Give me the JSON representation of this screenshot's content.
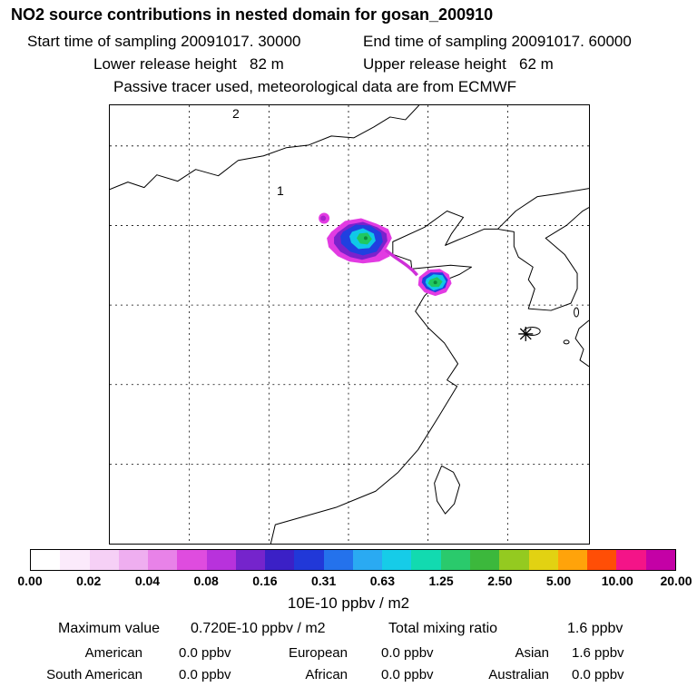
{
  "title": "NO2 source contributions in nested domain for gosan_200910",
  "header": {
    "start_time": "Start time of sampling 20091017. 30000",
    "end_time": "End time of sampling 20091017. 60000",
    "lower_release": "Lower release height   82 m",
    "upper_release": "Upper release height   62 m",
    "tracer_info": "Passive tracer used, meteorological data are from ECMWF"
  },
  "map": {
    "point_labels": [
      {
        "text": "2"
      },
      {
        "text": "1"
      }
    ],
    "receptor_marker": "asterisk"
  },
  "colorbar": {
    "ticks": [
      "0.00",
      "0.02",
      "0.04",
      "0.08",
      "0.16",
      "0.31",
      "0.63",
      "1.25",
      "2.50",
      "5.00",
      "10.00",
      "20.00"
    ],
    "colors": [
      "#ffffff",
      "#fbeafb",
      "#f6d0f6",
      "#efaef0",
      "#e882e8",
      "#df4cdf",
      "#b832dc",
      "#7524cc",
      "#3b20c6",
      "#2138d8",
      "#2472ec",
      "#2aaaf2",
      "#16cce8",
      "#12dab0",
      "#2aca6c",
      "#3cb83c",
      "#94ca20",
      "#e2d212",
      "#ffa30a",
      "#ff4e06",
      "#f41488",
      "#c401a6"
    ],
    "unit_label": "10E-10 ppbv / m2"
  },
  "stats": {
    "maximum_value_label": "Maximum value",
    "maximum_value": "0.720E-10 ppbv / m2",
    "total_mixing_ratio_label": "Total mixing ratio",
    "total_mixing_ratio_value": "1.6 ppbv",
    "contributions": [
      {
        "region": "American",
        "value": "0.0 ppbv"
      },
      {
        "region": "European",
        "value": "0.0 ppbv"
      },
      {
        "region": "Asian",
        "value": "1.6 ppbv"
      },
      {
        "region": "South American",
        "value": "0.0 ppbv"
      },
      {
        "region": "African",
        "value": "0.0 ppbv"
      },
      {
        "region": "Australian",
        "value": "0.0 ppbv"
      }
    ]
  },
  "chart_data": {
    "type": "heatmap",
    "title": "NO2 source contributions in nested domain for gosan_200910",
    "colorbar_levels": [
      0.0,
      0.02,
      0.04,
      0.08,
      0.16,
      0.31,
      0.63,
      1.25,
      2.5,
      5.0,
      10.0,
      20.0
    ],
    "colorbar_unit": "10E-10 ppbv / m2",
    "maximum_value": "0.720E-10 ppbv / m2",
    "total_mixing_ratio_ppbv": 1.6,
    "regional_contributions_ppbv": {
      "American": 0.0,
      "European": 0.0,
      "Asian": 1.6,
      "South American": 0.0,
      "African": 0.0,
      "Australian": 0.0
    },
    "map_point_labels": [
      "2",
      "1"
    ],
    "legend_position": "bottom"
  }
}
